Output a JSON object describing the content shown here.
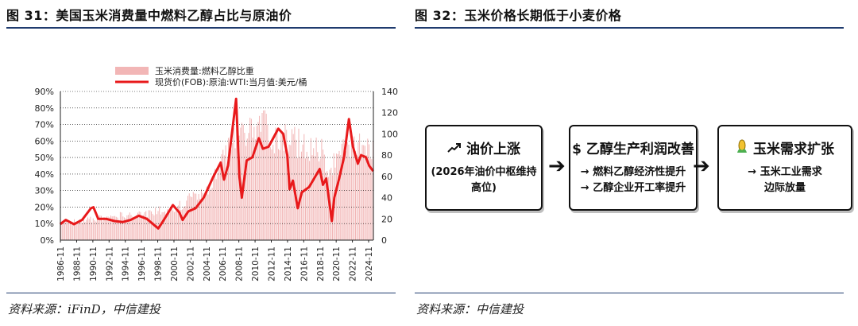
{
  "left_title": "图 31：美国玉米消费量中燃料乙醇占比与原油价",
  "right_title": "图 32：玉米价格长期低于小麦价格",
  "left_source": "资料来源：iFinD，中信建投",
  "right_source": "资料来源：中信建投",
  "chart_data": {
    "type": "bar+line",
    "legend": [
      "玉米消费量:燃料乙醇比重",
      "现货价(FOB):原油:WTI:当月值:美元/桶"
    ],
    "legend_position": "top-center",
    "colors": {
      "bar": "#f2b6b6",
      "line": "#e8191b",
      "axis": "#222222",
      "grid": "#000000"
    },
    "y_left": {
      "min": 0,
      "max": 90,
      "step": 10,
      "format": "percent",
      "ticks": [
        "0%",
        "10%",
        "20%",
        "30%",
        "40%",
        "50%",
        "60%",
        "70%",
        "80%",
        "90%"
      ]
    },
    "y_right": {
      "min": 0,
      "max": 140,
      "step": 20,
      "ticks": [
        "0",
        "20",
        "40",
        "60",
        "80",
        "100",
        "120",
        "140"
      ]
    },
    "x_start": 1986.83,
    "x_end": 2025.42,
    "x_ticks": [
      "1986-11",
      "1988-11",
      "1990-11",
      "1992-11",
      "1994-11",
      "1996-11",
      "1998-11",
      "2000-11",
      "2002-11",
      "2004-11",
      "2006-11",
      "2008-11",
      "2010-11",
      "2012-11",
      "2014-11",
      "2016-11",
      "2018-11",
      "2020-11",
      "2022-11",
      "2024-11"
    ],
    "ethanol_share_pct": {
      "x": [
        1986.8,
        1990,
        1994,
        1998,
        2000,
        2002,
        2004,
        2005,
        2006,
        2007,
        2008,
        2010,
        2012,
        2013,
        2014,
        2016,
        2018,
        2019,
        2020,
        2021,
        2022,
        2024,
        2025.4
      ],
      "values": [
        12,
        14,
        17,
        19,
        22,
        26,
        33,
        38,
        45,
        58,
        68,
        75,
        80,
        73,
        72,
        68,
        65,
        62,
        45,
        62,
        65,
        68,
        66
      ]
    },
    "wti_usd_per_barrel": {
      "x": [
        1986.8,
        1987.5,
        1988.5,
        1989.5,
        1990.6,
        1990.9,
        1991.5,
        1992.5,
        1993.5,
        1994.5,
        1995.5,
        1996.5,
        1997.5,
        1998.9,
        1999.5,
        2000.7,
        2001.5,
        2001.9,
        2002.6,
        2003.5,
        2004.5,
        2005.7,
        2006.6,
        2007.0,
        2007.5,
        2008.5,
        2008.9,
        2009.2,
        2009.8,
        2010.5,
        2011.3,
        2011.8,
        2012.5,
        2013.0,
        2013.7,
        2014.3,
        2014.8,
        2015.1,
        2015.5,
        2016.1,
        2016.6,
        2017.5,
        2018.8,
        2019.2,
        2019.6,
        2020.3,
        2020.6,
        2021.2,
        2021.8,
        2022.4,
        2022.9,
        2023.5,
        2023.9,
        2024.5,
        2024.9,
        2025.4
      ],
      "values": [
        15,
        19,
        15,
        19,
        30,
        31,
        20,
        20,
        18,
        17,
        19,
        23,
        20,
        11,
        18,
        33,
        26,
        19,
        27,
        30,
        40,
        60,
        73,
        57,
        70,
        133,
        60,
        40,
        75,
        78,
        96,
        86,
        88,
        95,
        105,
        100,
        80,
        48,
        56,
        30,
        45,
        50,
        67,
        52,
        58,
        18,
        40,
        58,
        78,
        114,
        88,
        72,
        80,
        78,
        70,
        65
      ]
    }
  },
  "flow": {
    "box1": {
      "icon": "trend-up-icon",
      "title": "油价上涨",
      "sub1": "(2026年油价中枢维持",
      "sub2": "高位)"
    },
    "box2": {
      "icon": "dollar-icon",
      "title": "乙醇生产利润改善",
      "sub1": "→ 燃料乙醇经济性提升",
      "sub2": "→ 乙醇企业开工率提升"
    },
    "box3": {
      "icon": "corn-icon",
      "title": "玉米需求扩张",
      "sub1": "→ 玉米工业需求",
      "sub2": "边际放量"
    },
    "arrow": "➔"
  }
}
